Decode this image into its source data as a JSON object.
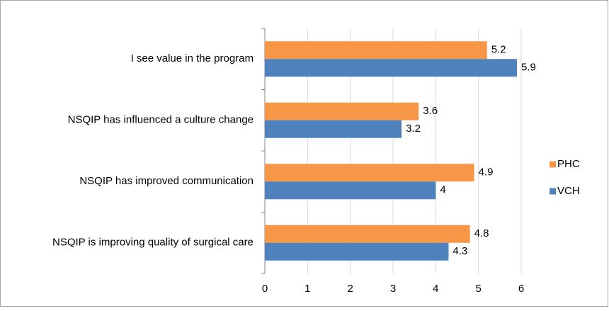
{
  "chart_data": {
    "type": "hbar",
    "categories": [
      "I see value in the program",
      "NSQIP has influenced a culture change",
      "NSQIP has improved communication",
      "NSQIP is improving quality of surgical care"
    ],
    "series": [
      {
        "name": "PHC",
        "color": "#f79646",
        "values": [
          5.2,
          3.6,
          4.9,
          4.8
        ]
      },
      {
        "name": "VCH",
        "color": "#4f81bd",
        "values": [
          5.9,
          3.2,
          4,
          4.3
        ]
      }
    ],
    "xlim": [
      0,
      6
    ],
    "xticks": [
      0,
      1,
      2,
      3,
      4,
      5,
      6
    ],
    "grid": true,
    "legend": "right"
  }
}
